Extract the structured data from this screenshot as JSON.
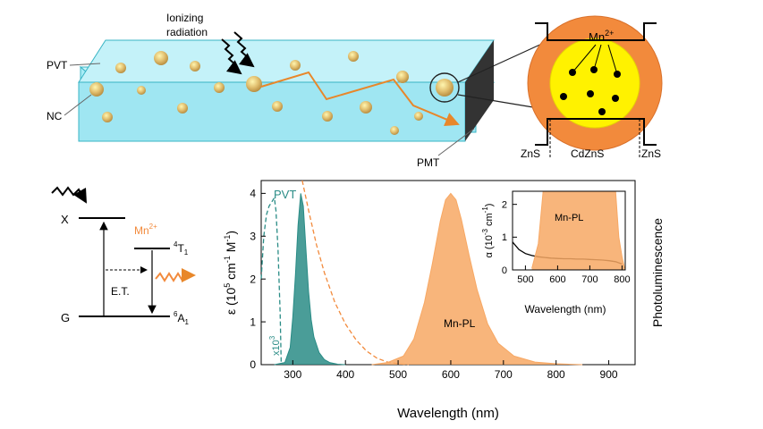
{
  "scintillator": {
    "radiation_label_1": "Ionizing",
    "radiation_label_2": "radiation",
    "pvt_label": "PVT",
    "nc_label": "NC",
    "pmt_label": "PMT",
    "colors": {
      "slab": "#9fe6f2",
      "slab_edge": "#38b4c4",
      "pmt": "#333333",
      "photon_path": "#e8872a",
      "nc_fill": "#d8b66a"
    }
  },
  "nanocrystal": {
    "dopant_label": "Mn",
    "dopant_charge": "2+",
    "shell_left": "ZnS",
    "core": "CdZnS",
    "shell_right": "ZnS",
    "colors": {
      "shell": "#f28a3c",
      "core": "#fff200",
      "dot": "#000000"
    }
  },
  "energy_diagram": {
    "exciton": "X",
    "ground": "G",
    "dopant": "Mn",
    "dopant_charge": "2+",
    "t1_sup": "4",
    "t1_main": "T",
    "t1_sub": "1",
    "a1_sup": "6",
    "a1_main": "A",
    "a1_sub": "1",
    "transfer": "E.T.",
    "colors": {
      "dopant": "#f28a3c",
      "emission": "#f28a3c"
    }
  },
  "main_plot": {
    "ylabel_eps": "ε (10",
    "ylabel_exp1": "5",
    "ylabel_mid": " cm",
    "ylabel_exp2": "-1",
    "ylabel_mid2": " M",
    "ylabel_exp3": "-1",
    "ylabel_end": ")",
    "right_label": "Photoluminescence",
    "pvt_label": "PVT",
    "x1000_base": "x10",
    "x1000_exp": "3",
    "mnpl_label": "Mn-PL"
  },
  "inset_plot": {
    "ylabel_alpha": "α (10",
    "ylabel_exp1": "-3",
    "ylabel_mid": " cm",
    "ylabel_exp2": "-1",
    "ylabel_end": ")",
    "mnpl_label": "Mn-PL"
  },
  "chart_data": [
    {
      "type": "line",
      "xlabel": "Wavelength (nm)",
      "xlim": [
        240,
        950
      ],
      "ylim": [
        0,
        4.3
      ],
      "xticks": [
        300,
        400,
        500,
        600,
        700,
        800,
        900
      ],
      "yticks": [
        0,
        1,
        2,
        3,
        4
      ],
      "series": [
        {
          "name": "PVT",
          "color": "#2a8c86",
          "style": "filled",
          "x": [
            265,
            285,
            295,
            300,
            305,
            310,
            315,
            320,
            325,
            330,
            335,
            340,
            350,
            360,
            370,
            385,
            400
          ],
          "y": [
            0.0,
            0.05,
            0.4,
            1.1,
            2.1,
            3.25,
            4.0,
            3.7,
            2.7,
            1.7,
            1.05,
            0.65,
            0.28,
            0.12,
            0.05,
            0.01,
            0.0
          ]
        },
        {
          "color": "#2a8c86",
          "style": "dashed",
          "x": [
            240,
            245,
            250,
            255,
            260,
            265,
            268,
            272,
            276,
            278
          ],
          "y": [
            2.0,
            3.0,
            3.5,
            3.7,
            3.8,
            3.9,
            3.6,
            2.7,
            1.2,
            0.0
          ]
        },
        {
          "color": "#f28a3c",
          "style": "dashed",
          "x": [
            318,
            330,
            345,
            360,
            380,
            400,
            420,
            440,
            460,
            480,
            500,
            520
          ],
          "y": [
            4.3,
            3.6,
            2.8,
            2.15,
            1.45,
            0.95,
            0.58,
            0.32,
            0.15,
            0.06,
            0.02,
            0.0
          ]
        },
        {
          "name": "Mn-PL",
          "color": "#f7a864",
          "style": "filled",
          "x": [
            450,
            480,
            510,
            530,
            550,
            565,
            580,
            590,
            600,
            610,
            620,
            635,
            650,
            670,
            690,
            720,
            760,
            800,
            850
          ],
          "y": [
            0.0,
            0.05,
            0.2,
            0.6,
            1.45,
            2.35,
            3.35,
            3.85,
            4.0,
            3.85,
            3.4,
            2.55,
            1.75,
            0.95,
            0.5,
            0.2,
            0.06,
            0.02,
            0.0
          ]
        }
      ]
    },
    {
      "type": "line",
      "xlabel": "Wavelength (nm)",
      "xlim": [
        460,
        810
      ],
      "ylim": [
        0,
        2.4
      ],
      "xticks": [
        500,
        600,
        700,
        800
      ],
      "yticks": [
        0,
        1,
        2
      ],
      "series": [
        {
          "name": "α",
          "color": "#000000",
          "style": "solid",
          "x": [
            460,
            480,
            500,
            520,
            540,
            560,
            580,
            600,
            620,
            640,
            660,
            680,
            700,
            720,
            740,
            760,
            780,
            800
          ],
          "y": [
            0.85,
            0.62,
            0.5,
            0.44,
            0.4,
            0.38,
            0.36,
            0.35,
            0.34,
            0.34,
            0.33,
            0.33,
            0.32,
            0.31,
            0.3,
            0.28,
            0.25,
            0.18
          ]
        },
        {
          "name": "Mn-PL",
          "color": "#f7a864",
          "style": "filled",
          "x": [
            520,
            540,
            555,
            600,
            700,
            780,
            790,
            800,
            808
          ],
          "y": [
            0.05,
            0.8,
            2.4,
            2.4,
            2.4,
            2.4,
            1.0,
            0.4,
            0.05
          ]
        }
      ]
    }
  ]
}
